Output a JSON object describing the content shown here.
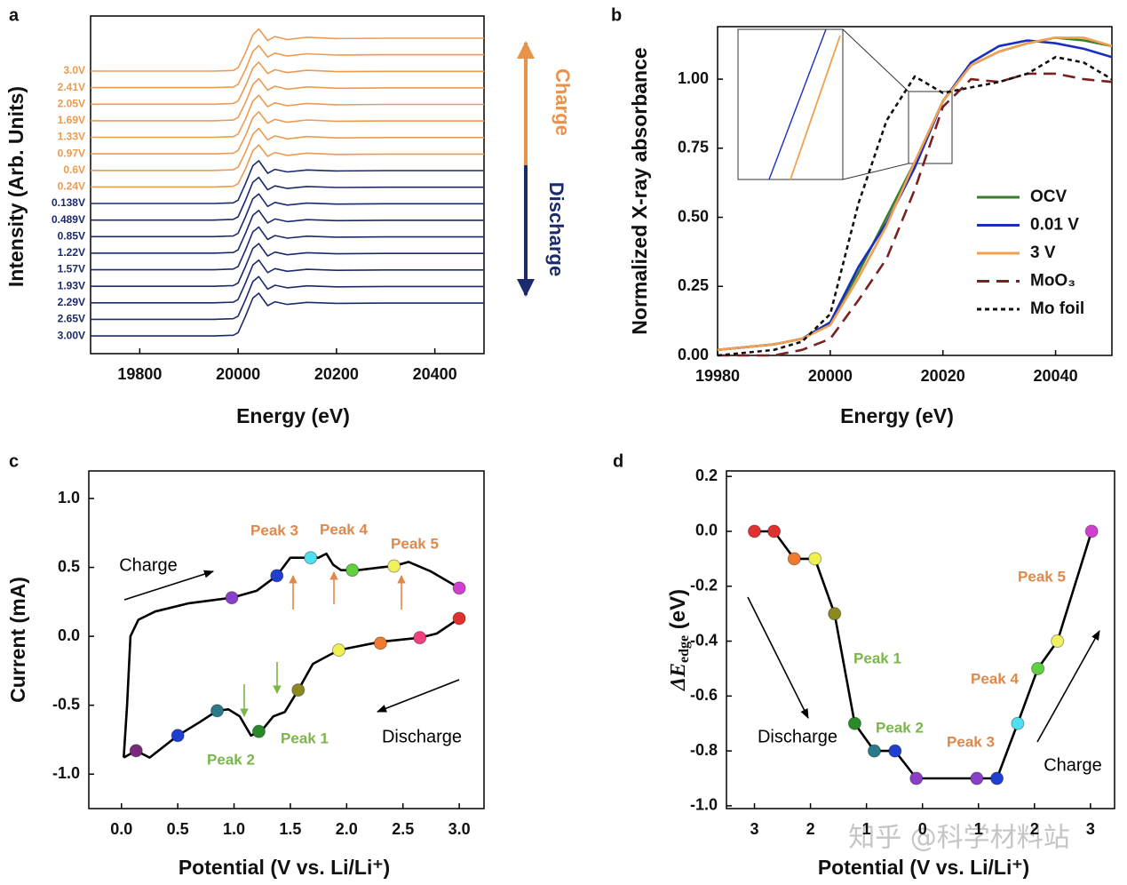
{
  "watermark": "知乎 @科学材料站",
  "chart_data": [
    {
      "type": "line",
      "panel": "a",
      "offset": true,
      "xlabel": "Energy (eV)",
      "ylabel": "Intensity  (Arb. Units)",
      "xlim": [
        19700,
        20500
      ],
      "xticks": [
        19800,
        20000,
        20200,
        20400
      ],
      "x": [
        19700,
        19950,
        19990,
        20000,
        20015,
        20030,
        20042,
        20060,
        20075,
        20100,
        20140,
        20200,
        20300,
        20500
      ],
      "series": [
        {
          "name": "3.0V",
          "color": "#ec9a50",
          "values": [
            0,
            0,
            0.02,
            0.1,
            0.55,
            1.1,
            1.28,
            0.93,
            1.05,
            0.96,
            1.03,
            0.99,
            1.0,
            1.0
          ]
        },
        {
          "name": "2.41V",
          "color": "#ec9a50",
          "values": [
            0,
            0,
            0.02,
            0.1,
            0.55,
            1.1,
            1.28,
            0.93,
            1.05,
            0.96,
            1.03,
            0.99,
            1.0,
            1.0
          ]
        },
        {
          "name": "2.05V",
          "color": "#ec9a50",
          "values": [
            0,
            0,
            0.02,
            0.1,
            0.55,
            1.1,
            1.28,
            0.93,
            1.05,
            0.96,
            1.03,
            0.99,
            1.0,
            1.0
          ]
        },
        {
          "name": "1.69V",
          "color": "#ec9a50",
          "values": [
            0,
            0,
            0.02,
            0.1,
            0.55,
            1.1,
            1.28,
            0.93,
            1.05,
            0.96,
            1.03,
            0.99,
            1.0,
            1.0
          ]
        },
        {
          "name": "1.33V",
          "color": "#ec9a50",
          "values": [
            0,
            0,
            0.02,
            0.1,
            0.55,
            1.1,
            1.28,
            0.93,
            1.05,
            0.96,
            1.03,
            0.99,
            1.0,
            1.0
          ]
        },
        {
          "name": "0.97V",
          "color": "#ec9a50",
          "values": [
            0,
            0,
            0.02,
            0.1,
            0.55,
            1.1,
            1.28,
            0.93,
            1.05,
            0.96,
            1.03,
            0.99,
            1.0,
            1.0
          ]
        },
        {
          "name": "0.6V",
          "color": "#ec9a50",
          "values": [
            0,
            0,
            0.02,
            0.1,
            0.55,
            1.1,
            1.28,
            0.93,
            1.05,
            0.96,
            1.03,
            0.99,
            1.0,
            1.0
          ]
        },
        {
          "name": "0.24V",
          "color": "#ec9a50",
          "values": [
            0,
            0,
            0.02,
            0.1,
            0.55,
            1.1,
            1.28,
            0.93,
            1.05,
            0.96,
            1.03,
            0.99,
            1.0,
            1.0
          ]
        },
        {
          "name": "0.138V",
          "color": "#1b2a6b",
          "values": [
            0,
            0,
            0.02,
            0.1,
            0.6,
            1.15,
            1.3,
            0.92,
            1.04,
            0.96,
            1.02,
            0.99,
            1.0,
            1.0
          ]
        },
        {
          "name": "0.489V",
          "color": "#1b2a6b",
          "values": [
            0,
            0,
            0.02,
            0.1,
            0.6,
            1.15,
            1.3,
            0.92,
            1.04,
            0.96,
            1.02,
            0.99,
            1.0,
            1.0
          ]
        },
        {
          "name": "0.85V",
          "color": "#1b2a6b",
          "values": [
            0,
            0,
            0.02,
            0.1,
            0.6,
            1.15,
            1.3,
            0.92,
            1.04,
            0.96,
            1.02,
            0.99,
            1.0,
            1.0
          ]
        },
        {
          "name": "1.22V",
          "color": "#1b2a6b",
          "values": [
            0,
            0,
            0.02,
            0.1,
            0.6,
            1.15,
            1.3,
            0.92,
            1.04,
            0.96,
            1.02,
            0.99,
            1.0,
            1.0
          ]
        },
        {
          "name": "1.57V",
          "color": "#1b2a6b",
          "values": [
            0,
            0,
            0.02,
            0.1,
            0.6,
            1.15,
            1.3,
            0.92,
            1.04,
            0.96,
            1.02,
            0.99,
            1.0,
            1.0
          ]
        },
        {
          "name": "1.93V",
          "color": "#1b2a6b",
          "values": [
            0,
            0,
            0.02,
            0.1,
            0.6,
            1.15,
            1.3,
            0.92,
            1.04,
            0.96,
            1.02,
            0.99,
            1.0,
            1.0
          ]
        },
        {
          "name": "2.29V",
          "color": "#1b2a6b",
          "values": [
            0,
            0,
            0.02,
            0.1,
            0.6,
            1.15,
            1.3,
            0.92,
            1.04,
            0.96,
            1.02,
            0.99,
            1.0,
            1.0
          ]
        },
        {
          "name": "2.65V",
          "color": "#1b2a6b",
          "values": [
            0,
            0,
            0.02,
            0.1,
            0.6,
            1.15,
            1.3,
            0.92,
            1.04,
            0.96,
            1.02,
            0.99,
            1.0,
            1.0
          ]
        },
        {
          "name": "3.00V",
          "color": "#1b2a6b",
          "values": [
            0,
            0,
            0.02,
            0.1,
            0.6,
            1.15,
            1.3,
            0.92,
            1.04,
            0.96,
            1.02,
            0.99,
            1.0,
            1.0
          ]
        }
      ],
      "annotations": [
        {
          "text": "Charge",
          "color": "#e8924a"
        },
        {
          "text": "Discharge",
          "color": "#1b2a6b"
        }
      ]
    },
    {
      "type": "line",
      "panel": "b",
      "xlabel": "Energy (eV)",
      "ylabel": "Normalized X-ray absorbance",
      "xlim": [
        19980,
        20050
      ],
      "xticks": [
        19980,
        20000,
        20020,
        20040
      ],
      "ylim": [
        0,
        1.19
      ],
      "yticks": [
        {
          "value": 0,
          "label": "0.00"
        },
        0.25,
        {
          "value": 0.5,
          "label": "0.50"
        },
        0.75,
        {
          "value": 1,
          "label": "1.00"
        }
      ],
      "legend": "center right",
      "x": [
        19980,
        19990,
        19995,
        20000,
        20005,
        20010,
        20015,
        20020,
        20025,
        20030,
        20035,
        20040,
        20045,
        20050
      ],
      "series": [
        {
          "name": "OCV",
          "color": "#3a7d2c",
          "style": "solid",
          "values": [
            0.02,
            0.04,
            0.06,
            0.12,
            0.3,
            0.5,
            0.7,
            0.92,
            1.05,
            1.1,
            1.13,
            1.15,
            1.14,
            1.12
          ]
        },
        {
          "name": "0.01 V",
          "color": "#1a2fbf",
          "style": "solid",
          "values": [
            0.02,
            0.04,
            0.06,
            0.12,
            0.32,
            0.48,
            0.68,
            0.92,
            1.06,
            1.12,
            1.14,
            1.13,
            1.11,
            1.08
          ]
        },
        {
          "name": "3 V",
          "color": "#f0a050",
          "style": "solid",
          "values": [
            0.02,
            0.04,
            0.06,
            0.11,
            0.28,
            0.47,
            0.7,
            0.92,
            1.05,
            1.1,
            1.13,
            1.15,
            1.15,
            1.12
          ]
        },
        {
          "name": "MoO₃",
          "color": "#7a2020",
          "style": "dashed",
          "values": [
            0,
            0,
            0.02,
            0.06,
            0.2,
            0.35,
            0.6,
            0.9,
            1.0,
            0.99,
            1.02,
            1.02,
            1.0,
            0.99
          ]
        },
        {
          "name": "Mo foil",
          "color": "#111111",
          "style": "dotted",
          "values": [
            0,
            0.02,
            0.05,
            0.15,
            0.55,
            0.85,
            1.01,
            0.95,
            0.97,
            0.99,
            1.02,
            1.08,
            1.06,
            1.0
          ]
        }
      ]
    },
    {
      "type": "line",
      "panel": "c",
      "xlabel": "Potential (V vs. Li/Li⁺)",
      "ylabel": "Current (mA)",
      "xlim": [
        -0.29,
        3.22
      ],
      "xticks": [
        {
          "value": 0,
          "label": "0.0"
        },
        0.5,
        {
          "value": 1,
          "label": "1.0"
        },
        1.5,
        {
          "value": 2,
          "label": "2.0"
        },
        2.5,
        {
          "value": 3,
          "label": "3.0"
        }
      ],
      "ylim": [
        -1.25,
        1.2
      ],
      "yticks": [
        {
          "value": -1,
          "label": "-1.0"
        },
        -0.5,
        {
          "value": 0,
          "label": "0.0"
        },
        0.5,
        {
          "value": 1,
          "label": "1.0"
        }
      ],
      "series": [
        {
          "color": "#000000",
          "x": [
            0.02,
            0.05,
            0.08,
            0.15,
            0.3,
            0.6,
            0.98,
            1.2,
            1.38,
            1.5,
            1.62,
            1.75,
            1.82,
            1.88,
            1.95,
            2.1,
            2.3,
            2.42,
            2.55,
            2.75,
            3.0
          ],
          "values": [
            -0.88,
            -0.5,
            0.0,
            0.12,
            0.18,
            0.24,
            0.28,
            0.33,
            0.44,
            0.57,
            0.57,
            0.57,
            0.6,
            0.52,
            0.48,
            0.48,
            0.5,
            0.51,
            0.54,
            0.47,
            0.35
          ]
        },
        {
          "color": "#000000",
          "x": [
            3.0,
            2.8,
            2.65,
            2.3,
            1.93,
            1.7,
            1.57,
            1.45,
            1.35,
            1.25,
            1.15,
            1.05,
            0.95,
            0.85,
            0.7,
            0.5,
            0.25,
            0.13,
            0.02
          ],
          "values": [
            0.13,
            0.02,
            -0.01,
            -0.04,
            -0.1,
            -0.2,
            -0.39,
            -0.55,
            -0.58,
            -0.68,
            -0.72,
            -0.58,
            -0.53,
            -0.54,
            -0.62,
            -0.72,
            -0.88,
            -0.83,
            -0.88
          ]
        }
      ],
      "markers": {
        "x": [
          0.98,
          1.38,
          1.68,
          2.05,
          2.42,
          3.0,
          3.0,
          2.65,
          2.3,
          1.93,
          1.57,
          1.22,
          0.85,
          0.5,
          0.13
        ],
        "values": [
          0.28,
          0.44,
          0.57,
          0.48,
          0.51,
          0.35,
          0.13,
          -0.01,
          -0.05,
          -0.1,
          -0.39,
          -0.69,
          -0.54,
          -0.72,
          -0.83
        ],
        "colors": [
          "#8a3fc8",
          "#1f3fd0",
          "#4fe0f0",
          "#5fd040",
          "#f0f060",
          "#d040d0",
          "#e03030",
          "#f04080",
          "#f07a30",
          "#f0f050",
          "#8a8a20",
          "#2a8a2a",
          "#2a7a8a",
          "#1f3fd0",
          "#7a2a7a"
        ]
      },
      "annotations": [
        {
          "text": "Charge",
          "color": "#000000"
        },
        {
          "text": "Discharge",
          "color": "#000000"
        },
        {
          "text": "Peak 1",
          "color": "#7ab648"
        },
        {
          "text": "Peak 2",
          "color": "#7ab648"
        },
        {
          "text": "Peak 3",
          "color": "#e0884a"
        },
        {
          "text": "Peak 4",
          "color": "#e0884a"
        },
        {
          "text": "Peak 5",
          "color": "#e0884a"
        }
      ]
    },
    {
      "type": "line",
      "panel": "d",
      "xlabel": "Potential (V vs. Li/Li⁺)",
      "ylabel": {
        "symbol": "ΔE",
        "subscript": "edge",
        "unit": " (eV)"
      },
      "xlim": [
        -0.5,
        6.43
      ],
      "xticks": [
        {
          "value": 0,
          "label": "3"
        },
        {
          "value": 1,
          "label": "2"
        },
        {
          "value": 2,
          "label": "1"
        },
        {
          "value": 3,
          "label": "0"
        },
        {
          "value": 4,
          "label": "1"
        },
        {
          "value": 5,
          "label": "2"
        },
        {
          "value": 6,
          "label": "3"
        }
      ],
      "ylim": [
        -1.01,
        0.22
      ],
      "yticks": [
        {
          "value": -1,
          "label": "-1.0"
        },
        -0.8,
        -0.6,
        -0.4,
        -0.2,
        {
          "value": 0,
          "label": "0.0"
        },
        0.2
      ],
      "series": [
        {
          "color": "#000000",
          "x": [
            0,
            0.35,
            0.71,
            1.08,
            1.43,
            1.79,
            2.14,
            2.51,
            2.89,
            3.97,
            4.33,
            4.7,
            5.06,
            5.41,
            6.02
          ],
          "values": [
            0,
            0,
            -0.1,
            -0.1,
            -0.3,
            -0.7,
            -0.8,
            -0.8,
            -0.9,
            -0.9,
            -0.9,
            -0.7,
            -0.5,
            -0.4,
            0
          ],
          "colors": [
            "#e03030",
            "#e03030",
            "#f07a30",
            "#f0f050",
            "#8a8a20",
            "#2a8a2a",
            "#2a7a8a",
            "#1f3fd0",
            "#8a3fc8",
            "#8a3fc8",
            "#1f3fd0",
            "#4fe0f0",
            "#5fd040",
            "#f0f060",
            "#d040d0"
          ]
        }
      ],
      "annotations": [
        {
          "text": "Discharge",
          "color": "#000000"
        },
        {
          "text": "Charge",
          "color": "#000000"
        },
        {
          "text": "Peak 1",
          "color": "#7ab648"
        },
        {
          "text": "Peak 2",
          "color": "#7ab648"
        },
        {
          "text": "Peak 3",
          "color": "#e0884a"
        },
        {
          "text": "Peak 4",
          "color": "#e0884a"
        },
        {
          "text": "Peak 5",
          "color": "#e0884a"
        }
      ]
    }
  ]
}
